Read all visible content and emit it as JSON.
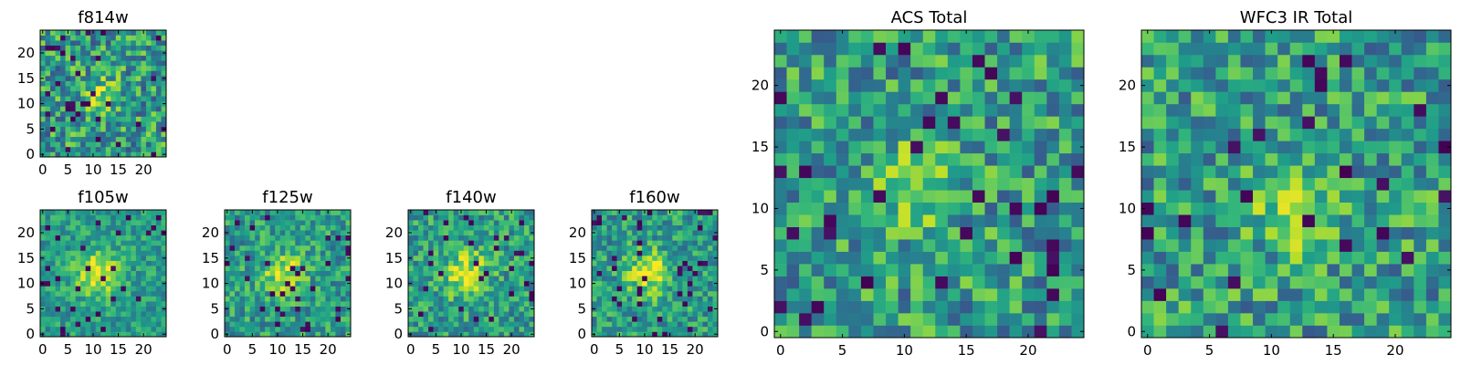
{
  "figure": {
    "description_colormap": "viridis"
  },
  "colors": {
    "low": "#440154",
    "mid_low": "#31688e",
    "mid": "#21918c",
    "mid_high": "#35b779",
    "high": "#fde725"
  },
  "chart_data": [
    {
      "type": "heatmap",
      "id": "f814w",
      "title": "f814w",
      "colormap": "viridis",
      "size": 25,
      "seed": 11,
      "peak": [
        11,
        12
      ],
      "peak_sigma": 2.5,
      "peak_amp": 0.25,
      "noise": 0.6,
      "dark_frac": 0.05,
      "xlim": [
        -0.5,
        24.5
      ],
      "ylim": [
        -0.5,
        24.5
      ],
      "xticks": [
        0,
        5,
        10,
        15,
        20
      ],
      "xtick_labels": [
        "0",
        "5",
        "10",
        "15",
        "20"
      ],
      "yticks": [
        0,
        5,
        10,
        15,
        20
      ],
      "ytick_labels": [
        "0",
        "5",
        "10",
        "15",
        "20"
      ]
    },
    {
      "type": "heatmap",
      "id": "f105w",
      "title": "f105w",
      "colormap": "viridis",
      "size": 25,
      "seed": 23,
      "peak": [
        11,
        12
      ],
      "peak_sigma": 3.0,
      "peak_amp": 0.45,
      "noise": 0.35,
      "dark_frac": 0.04,
      "xlim": [
        -0.5,
        24.5
      ],
      "ylim": [
        -0.5,
        24.5
      ],
      "xticks": [
        0,
        5,
        10,
        15,
        20
      ],
      "xtick_labels": [
        "0",
        "5",
        "10",
        "15",
        "20"
      ],
      "yticks": [
        0,
        5,
        10,
        15,
        20
      ],
      "ytick_labels": [
        "0",
        "5",
        "10",
        "15",
        "20"
      ]
    },
    {
      "type": "heatmap",
      "id": "f125w",
      "title": "f125w",
      "colormap": "viridis",
      "size": 25,
      "seed": 37,
      "peak": [
        11,
        12
      ],
      "peak_sigma": 3.0,
      "peak_amp": 0.35,
      "noise": 0.45,
      "dark_frac": 0.05,
      "xlim": [
        -0.5,
        24.5
      ],
      "ylim": [
        -0.5,
        24.5
      ],
      "xticks": [
        0,
        5,
        10,
        15,
        20
      ],
      "xtick_labels": [
        "0",
        "5",
        "10",
        "15",
        "20"
      ],
      "yticks": [
        0,
        5,
        10,
        15,
        20
      ],
      "ytick_labels": [
        "0",
        "5",
        "10",
        "15",
        "20"
      ]
    },
    {
      "type": "heatmap",
      "id": "f140w",
      "title": "f140w",
      "colormap": "viridis",
      "size": 25,
      "seed": 53,
      "peak": [
        11,
        12
      ],
      "peak_sigma": 3.2,
      "peak_amp": 0.4,
      "noise": 0.45,
      "dark_frac": 0.05,
      "xlim": [
        -0.5,
        24.5
      ],
      "ylim": [
        -0.5,
        24.5
      ],
      "xticks": [
        0,
        5,
        10,
        15,
        20
      ],
      "xtick_labels": [
        "0",
        "5",
        "10",
        "15",
        "20"
      ],
      "yticks": [
        0,
        5,
        10,
        15,
        20
      ],
      "ytick_labels": [
        "0",
        "5",
        "10",
        "15",
        "20"
      ]
    },
    {
      "type": "heatmap",
      "id": "f160w",
      "title": "f160w",
      "colormap": "viridis",
      "size": 25,
      "seed": 71,
      "peak": [
        11,
        12
      ],
      "peak_sigma": 3.0,
      "peak_amp": 0.4,
      "noise": 0.45,
      "dark_frac": 0.06,
      "xlim": [
        -0.5,
        24.5
      ],
      "ylim": [
        -0.5,
        24.5
      ],
      "xticks": [
        0,
        5,
        10,
        15,
        20
      ],
      "xtick_labels": [
        "0",
        "5",
        "10",
        "15",
        "20"
      ],
      "yticks": [
        0,
        5,
        10,
        15,
        20
      ],
      "ytick_labels": [
        "0",
        "5",
        "10",
        "15",
        "20"
      ]
    },
    {
      "type": "heatmap",
      "id": "acs-total",
      "title": "ACS Total",
      "colormap": "viridis",
      "size": 25,
      "seed": 89,
      "peak": [
        11,
        12
      ],
      "peak_sigma": 2.2,
      "peak_amp": 0.35,
      "noise": 0.55,
      "dark_frac": 0.04,
      "xlim": [
        -0.5,
        24.5
      ],
      "ylim": [
        -0.5,
        24.5
      ],
      "xticks": [
        0,
        5,
        10,
        15,
        20
      ],
      "xtick_labels": [
        "0",
        "5",
        "10",
        "15",
        "20"
      ],
      "yticks": [
        0,
        5,
        10,
        15,
        20
      ],
      "ytick_labels": [
        "0",
        "5",
        "10",
        "15",
        "20"
      ]
    },
    {
      "type": "heatmap",
      "id": "wfc3-ir-total",
      "title": "WFC3 IR Total",
      "colormap": "viridis",
      "size": 25,
      "seed": 97,
      "peak": [
        12,
        10
      ],
      "peak_sigma": 2.5,
      "peak_amp": 0.35,
      "noise": 0.55,
      "dark_frac": 0.04,
      "xlim": [
        -0.5,
        24.5
      ],
      "ylim": [
        -0.5,
        24.5
      ],
      "xticks": [
        0,
        5,
        10,
        15,
        20
      ],
      "xtick_labels": [
        "0",
        "5",
        "10",
        "15",
        "20"
      ],
      "yticks": [
        0,
        5,
        10,
        15,
        20
      ],
      "ytick_labels": [
        "0",
        "5",
        "10",
        "15",
        "20"
      ]
    }
  ]
}
